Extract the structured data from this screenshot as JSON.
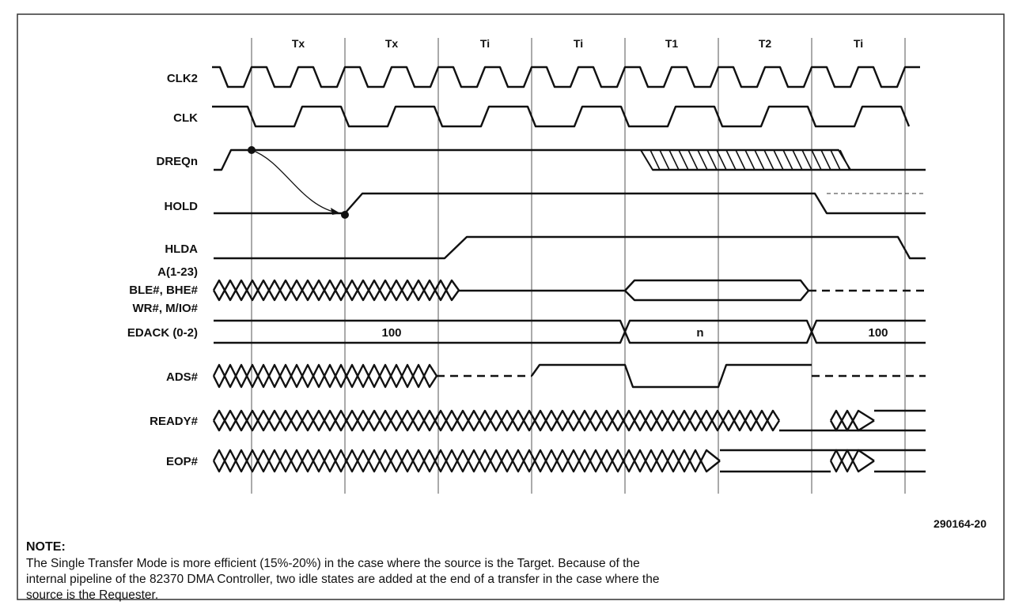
{
  "states": [
    "Tx",
    "Tx",
    "Ti",
    "Ti",
    "T1",
    "T2",
    "Ti"
  ],
  "signals": [
    "CLK2",
    "CLK",
    "DREQn",
    "HOLD",
    "HLDA",
    [
      "A(1-23)",
      "BLE#, BHE#",
      "WR#, M/IO#"
    ],
    "EDACK (0-2)",
    "ADS#",
    "READY#",
    "EOP#"
  ],
  "bus_values": [
    "100",
    "n",
    "100"
  ],
  "figure_id": "290164-20",
  "note": {
    "title": "NOTE:",
    "lines": [
      "The Single Transfer Mode is more efficient (15%-20%) in the case where the source is the Target. Because of the",
      "internal pipeline of the 82370 DMA Controller, two idle states are added at the end of a transfer in the case where the",
      "source is the Requester."
    ]
  }
}
